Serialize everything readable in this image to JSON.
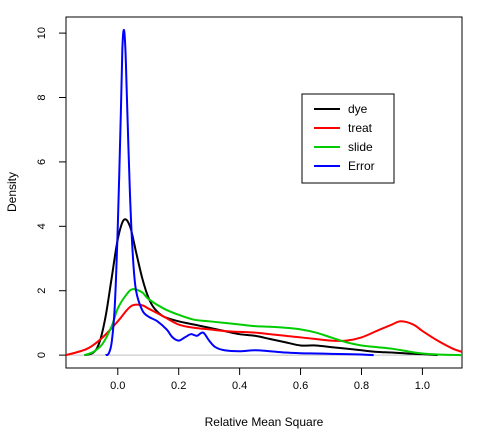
{
  "chart_data": {
    "type": "line",
    "title": "",
    "xlabel": "Relative Mean Square",
    "ylabel": "Density",
    "xlim": [
      -0.17,
      1.13
    ],
    "ylim": [
      -0.4,
      10.5
    ],
    "xticks": [
      {
        "value": 0.0,
        "label": "0.0"
      },
      {
        "value": 0.2,
        "label": "0.2"
      },
      {
        "value": 0.4,
        "label": "0.4"
      },
      {
        "value": 0.6,
        "label": "0.6"
      },
      {
        "value": 0.8,
        "label": "0.8"
      },
      {
        "value": 1.0,
        "label": "1.0"
      }
    ],
    "yticks": [
      {
        "value": 0,
        "label": "0"
      },
      {
        "value": 2,
        "label": "2"
      },
      {
        "value": 4,
        "label": "4"
      },
      {
        "value": 6,
        "label": "6"
      },
      {
        "value": 8,
        "label": "8"
      },
      {
        "value": 10,
        "label": "10"
      }
    ],
    "baseline": {
      "value": 0,
      "color": "#c0c0c0"
    },
    "grid": false,
    "legend": {
      "position": "upper-right, inside plot"
    },
    "series": [
      {
        "name": "dye",
        "color": "#000000",
        "points": [
          [
            -0.11,
            0.0
          ],
          [
            -0.08,
            0.08
          ],
          [
            -0.06,
            0.4
          ],
          [
            -0.04,
            1.2
          ],
          [
            -0.02,
            2.4
          ],
          [
            0.0,
            3.6
          ],
          [
            0.02,
            4.2
          ],
          [
            0.04,
            4.0
          ],
          [
            0.06,
            3.2
          ],
          [
            0.08,
            2.4
          ],
          [
            0.1,
            1.8
          ],
          [
            0.12,
            1.45
          ],
          [
            0.15,
            1.2
          ],
          [
            0.2,
            1.05
          ],
          [
            0.25,
            0.95
          ],
          [
            0.3,
            0.85
          ],
          [
            0.35,
            0.75
          ],
          [
            0.4,
            0.65
          ],
          [
            0.45,
            0.6
          ],
          [
            0.5,
            0.5
          ],
          [
            0.55,
            0.4
          ],
          [
            0.6,
            0.3
          ],
          [
            0.65,
            0.3
          ],
          [
            0.7,
            0.25
          ],
          [
            0.75,
            0.2
          ],
          [
            0.8,
            0.15
          ],
          [
            0.85,
            0.1
          ],
          [
            0.9,
            0.08
          ],
          [
            0.95,
            0.05
          ],
          [
            1.0,
            0.03
          ],
          [
            1.05,
            0.0
          ]
        ]
      },
      {
        "name": "treat",
        "color": "#ff0000",
        "points": [
          [
            -0.17,
            0.0
          ],
          [
            -0.1,
            0.2
          ],
          [
            -0.05,
            0.55
          ],
          [
            0.0,
            1.05
          ],
          [
            0.03,
            1.4
          ],
          [
            0.05,
            1.55
          ],
          [
            0.08,
            1.55
          ],
          [
            0.1,
            1.45
          ],
          [
            0.15,
            1.2
          ],
          [
            0.2,
            0.95
          ],
          [
            0.25,
            0.85
          ],
          [
            0.3,
            0.8
          ],
          [
            0.35,
            0.75
          ],
          [
            0.4,
            0.72
          ],
          [
            0.45,
            0.7
          ],
          [
            0.5,
            0.65
          ],
          [
            0.55,
            0.6
          ],
          [
            0.6,
            0.55
          ],
          [
            0.65,
            0.5
          ],
          [
            0.7,
            0.45
          ],
          [
            0.75,
            0.45
          ],
          [
            0.8,
            0.55
          ],
          [
            0.85,
            0.75
          ],
          [
            0.9,
            0.95
          ],
          [
            0.93,
            1.05
          ],
          [
            0.97,
            0.95
          ],
          [
            1.0,
            0.75
          ],
          [
            1.05,
            0.45
          ],
          [
            1.1,
            0.2
          ],
          [
            1.13,
            0.1
          ]
        ]
      },
      {
        "name": "slide",
        "color": "#00cc00",
        "points": [
          [
            -0.11,
            0.0
          ],
          [
            -0.08,
            0.1
          ],
          [
            -0.05,
            0.35
          ],
          [
            -0.02,
            0.9
          ],
          [
            0.0,
            1.45
          ],
          [
            0.03,
            1.9
          ],
          [
            0.05,
            2.05
          ],
          [
            0.08,
            1.95
          ],
          [
            0.1,
            1.75
          ],
          [
            0.15,
            1.45
          ],
          [
            0.2,
            1.25
          ],
          [
            0.25,
            1.1
          ],
          [
            0.3,
            1.05
          ],
          [
            0.35,
            1.0
          ],
          [
            0.4,
            0.95
          ],
          [
            0.45,
            0.9
          ],
          [
            0.5,
            0.88
          ],
          [
            0.55,
            0.85
          ],
          [
            0.6,
            0.8
          ],
          [
            0.65,
            0.7
          ],
          [
            0.7,
            0.55
          ],
          [
            0.75,
            0.4
          ],
          [
            0.8,
            0.3
          ],
          [
            0.85,
            0.25
          ],
          [
            0.9,
            0.2
          ],
          [
            0.95,
            0.12
          ],
          [
            1.0,
            0.05
          ],
          [
            1.05,
            0.02
          ],
          [
            1.13,
            0.0
          ]
        ]
      },
      {
        "name": "Error",
        "color": "#0000ff",
        "points": [
          [
            -0.04,
            0.0
          ],
          [
            -0.03,
            0.05
          ],
          [
            -0.02,
            0.4
          ],
          [
            -0.01,
            1.5
          ],
          [
            0.0,
            4.0
          ],
          [
            0.01,
            7.5
          ],
          [
            0.015,
            9.5
          ],
          [
            0.02,
            10.1
          ],
          [
            0.025,
            9.5
          ],
          [
            0.03,
            8.0
          ],
          [
            0.04,
            5.0
          ],
          [
            0.05,
            3.0
          ],
          [
            0.06,
            2.0
          ],
          [
            0.08,
            1.4
          ],
          [
            0.1,
            1.2
          ],
          [
            0.13,
            1.05
          ],
          [
            0.16,
            0.8
          ],
          [
            0.18,
            0.55
          ],
          [
            0.2,
            0.45
          ],
          [
            0.22,
            0.55
          ],
          [
            0.24,
            0.65
          ],
          [
            0.26,
            0.6
          ],
          [
            0.28,
            0.7
          ],
          [
            0.3,
            0.45
          ],
          [
            0.32,
            0.25
          ],
          [
            0.35,
            0.15
          ],
          [
            0.4,
            0.12
          ],
          [
            0.45,
            0.15
          ],
          [
            0.5,
            0.12
          ],
          [
            0.55,
            0.08
          ],
          [
            0.6,
            0.06
          ],
          [
            0.65,
            0.05
          ],
          [
            0.7,
            0.04
          ],
          [
            0.75,
            0.03
          ],
          [
            0.8,
            0.02
          ],
          [
            0.84,
            0.0
          ]
        ]
      }
    ]
  }
}
